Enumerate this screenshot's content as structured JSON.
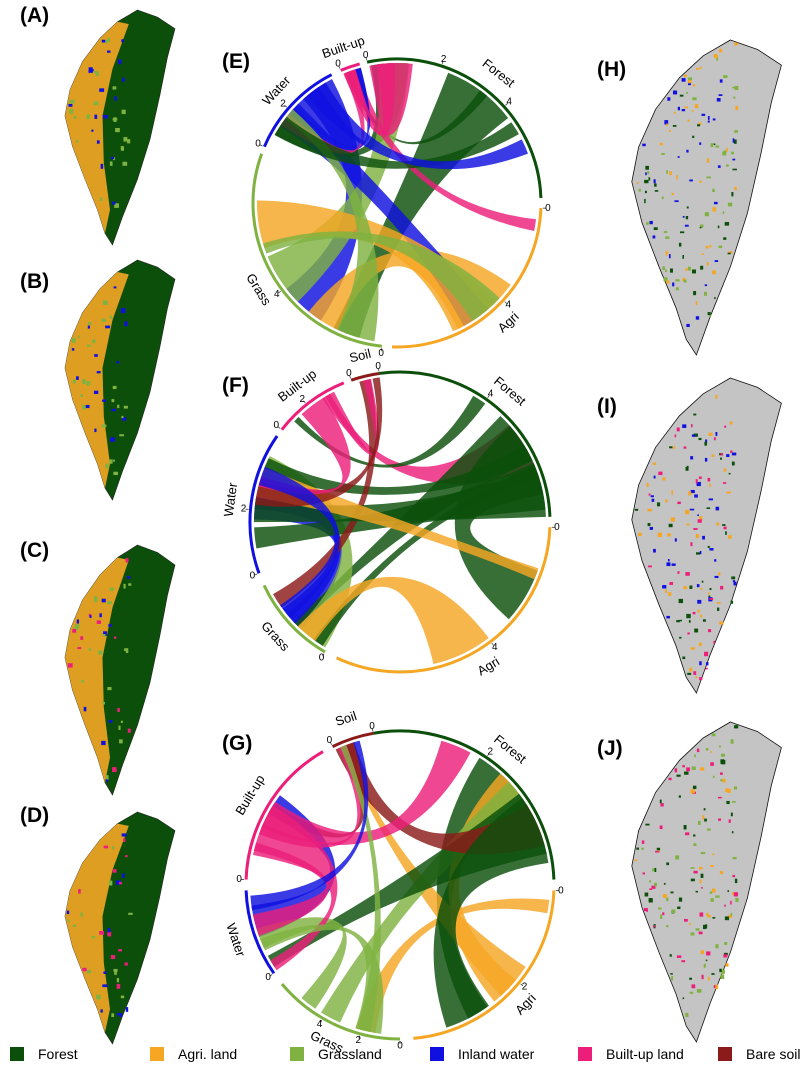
{
  "maps_left": [
    {
      "label": "(A)"
    },
    {
      "label": "(B)"
    },
    {
      "label": "(C)"
    },
    {
      "label": "(D)"
    }
  ],
  "chords": [
    {
      "label": "(E)",
      "sectors": [
        {
          "name": "Forest",
          "color": "#0b4f0b",
          "ticks": [
            "0",
            "2",
            "4"
          ]
        },
        {
          "name": "Agri",
          "color": "#f5a623",
          "ticks": [
            "0",
            "4"
          ]
        },
        {
          "name": "Grass",
          "color": "#7fb241",
          "ticks": [
            "0",
            "4"
          ]
        },
        {
          "name": "Water",
          "color": "#1010e0",
          "ticks": [
            "0",
            "2"
          ]
        },
        {
          "name": "Built-up",
          "color": "#ec1e7a",
          "ticks": [
            "0"
          ]
        }
      ]
    },
    {
      "label": "(F)",
      "sectors": [
        {
          "name": "Forest",
          "color": "#0b4f0b",
          "ticks": [
            "0",
            "4"
          ]
        },
        {
          "name": "Agri",
          "color": "#f5a623",
          "ticks": [
            "0",
            "4"
          ]
        },
        {
          "name": "Grass",
          "color": "#7fb241",
          "ticks": [
            "0"
          ]
        },
        {
          "name": "Water",
          "color": "#1010e0",
          "ticks": [
            "0",
            "2"
          ]
        },
        {
          "name": "Built-up",
          "color": "#ec1e7a",
          "ticks": [
            "0",
            "2"
          ]
        },
        {
          "name": "Soil",
          "color": "#8b1a1a",
          "ticks": [
            "0"
          ]
        }
      ]
    },
    {
      "label": "(G)",
      "sectors": [
        {
          "name": "Forest",
          "color": "#0b4f0b",
          "ticks": [
            "0",
            "2"
          ]
        },
        {
          "name": "Agri",
          "color": "#f5a623",
          "ticks": [
            "0",
            "2"
          ]
        },
        {
          "name": "Grass",
          "color": "#7fb241",
          "ticks": [
            "0",
            "2",
            "4"
          ]
        },
        {
          "name": "Water",
          "color": "#1010e0",
          "ticks": [
            "0"
          ]
        },
        {
          "name": "Built-up",
          "color": "#ec1e7a",
          "ticks": [
            "0"
          ]
        },
        {
          "name": "Soil",
          "color": "#8b1a1a",
          "ticks": [
            "0"
          ]
        }
      ]
    }
  ],
  "maps_right": [
    {
      "label": "(H)"
    },
    {
      "label": "(I)"
    },
    {
      "label": "(J)"
    }
  ],
  "legend": [
    {
      "name": "Forest",
      "color": "#0b4f0b"
    },
    {
      "name": "Agri. land",
      "color": "#f5a623"
    },
    {
      "name": "Grassland",
      "color": "#7fb241"
    },
    {
      "name": "Inland water",
      "color": "#1010e0"
    },
    {
      "name": "Built-up land",
      "color": "#ec1e7a"
    },
    {
      "name": "Bare soil",
      "color": "#8b1a1a"
    }
  ]
}
